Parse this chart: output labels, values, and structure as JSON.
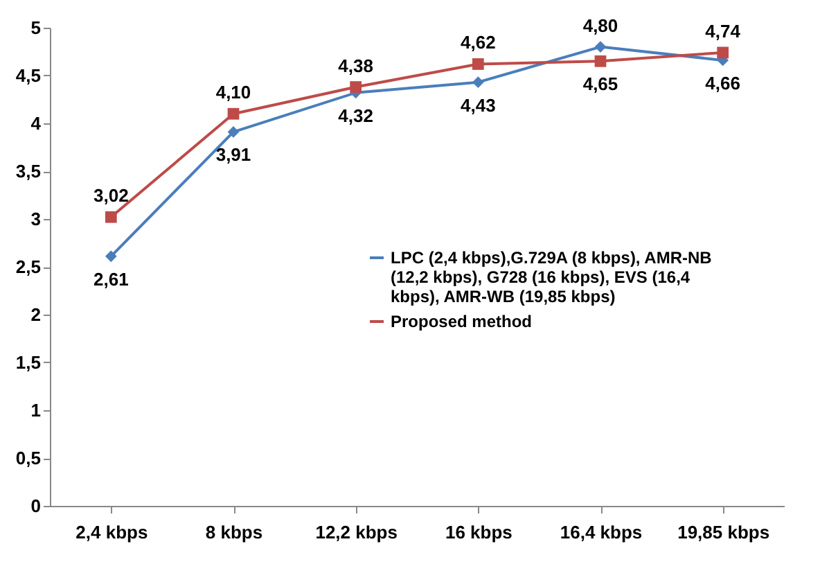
{
  "chart_data": {
    "type": "line",
    "categories": [
      "2,4 kbps",
      "8 kbps",
      "12,2 kbps",
      "16 kbps",
      "16,4 kbps",
      "19,85 kbps"
    ],
    "series": [
      {
        "name": "LPC (2,4 kbps),G.729A (8 kbps), AMR-NB (12,2 kbps), G728 (16 kbps), EVS (16,4 kbps), AMR-WB (19,85 kbps)",
        "color": "#4a7ebb",
        "marker": "diamond",
        "values": [
          2.61,
          3.91,
          4.32,
          4.43,
          4.8,
          4.66
        ],
        "value_labels": [
          "2,61",
          "3,91",
          "4,32",
          "4,43",
          "4,80",
          "4,66"
        ]
      },
      {
        "name": "Proposed method",
        "color": "#be4b48",
        "marker": "square",
        "values": [
          3.02,
          4.1,
          4.38,
          4.62,
          4.65,
          4.74
        ],
        "value_labels": [
          "3,02",
          "4,10",
          "4,38",
          "4,62",
          "4,65",
          "4,74"
        ]
      }
    ],
    "ylim": [
      0,
      5
    ],
    "yticks": [
      {
        "value": 0,
        "label": "0"
      },
      {
        "value": 0.5,
        "label": "0,5"
      },
      {
        "value": 1,
        "label": "1"
      },
      {
        "value": 1.5,
        "label": "1,5"
      },
      {
        "value": 2,
        "label": "2"
      },
      {
        "value": 2.5,
        "label": "2,5"
      },
      {
        "value": 3,
        "label": "3"
      },
      {
        "value": 3.5,
        "label": "3,5"
      },
      {
        "value": 4,
        "label": "4"
      },
      {
        "value": 4.5,
        "label": "4,5"
      },
      {
        "value": 5,
        "label": "5"
      }
    ],
    "grid": false,
    "legend": "right",
    "line_style": "solid"
  }
}
